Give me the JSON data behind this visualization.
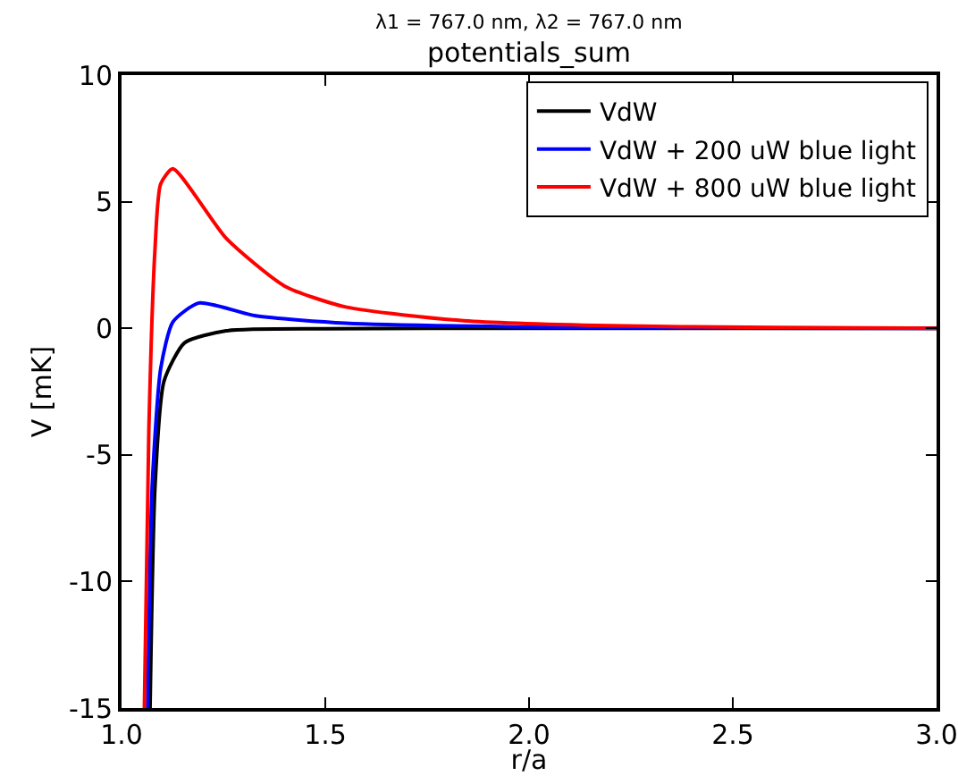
{
  "chart_data": {
    "type": "line",
    "title": "potentials_sum",
    "subtitle": "λ1 = 767.0 nm, λ2 = 767.0 nm",
    "xlabel": "r/a",
    "ylabel": "V [mK]",
    "xlim": [
      1.0,
      3.0
    ],
    "xticks": [
      {
        "value": 1.0,
        "label": "1.0"
      },
      {
        "value": 1.5,
        "label": "1.5"
      },
      {
        "value": 2.0,
        "label": "2.0"
      },
      {
        "value": 2.5,
        "label": "2.5"
      },
      {
        "value": 3.0,
        "label": "3.0"
      }
    ],
    "ylim": [
      -15,
      10
    ],
    "yticks": [
      -15,
      -10,
      -5,
      0,
      5,
      10
    ],
    "grid": false,
    "legend": "top right",
    "marker": "none",
    "line_style": "solid",
    "series": [
      {
        "name": "VdW",
        "color": "#000000",
        "x": [
          1.07,
          1.082,
          1.104,
          1.155,
          1.257,
          1.5,
          2.0,
          2.5,
          3.0
        ],
        "values": [
          -15,
          -6.3,
          -2.1,
          -0.57,
          -0.1,
          -0.02,
          0,
          0,
          0
        ]
      },
      {
        "name": "VdW + 200 uW blue light",
        "color": "#0000ff",
        "x": [
          1.064,
          1.075,
          1.096,
          1.126,
          1.19,
          1.33,
          1.55,
          2.0,
          2.5,
          3.0
        ],
        "values": [
          -15,
          -6.3,
          -1.6,
          0.25,
          1.0,
          0.49,
          0.2,
          0.05,
          0.01,
          0
        ]
      },
      {
        "name": "VdW + 800 uW blue light",
        "color": "#ff0000",
        "x": [
          1.056,
          1.067,
          1.082,
          1.096,
          1.126,
          1.257,
          1.4,
          1.55,
          1.84,
          2.2,
          2.6,
          3.0
        ],
        "values": [
          -15,
          -4,
          3.1,
          5.7,
          6.3,
          3.55,
          1.67,
          0.84,
          0.3,
          0.1,
          0.03,
          0
        ]
      }
    ]
  }
}
